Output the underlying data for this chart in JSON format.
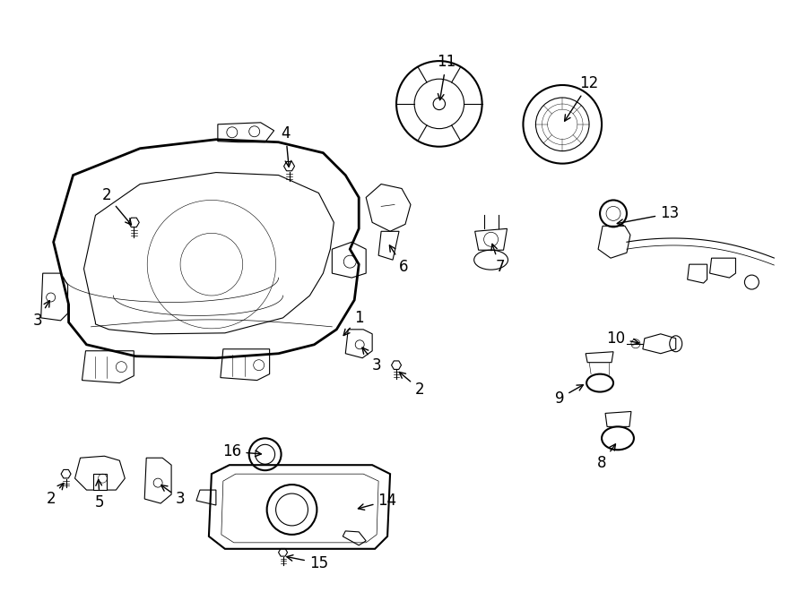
{
  "bg_color": "#ffffff",
  "line_color": "#000000",
  "line_width": 1.5,
  "thin_line": 0.8,
  "fig_width": 9.0,
  "fig_height": 6.61
}
